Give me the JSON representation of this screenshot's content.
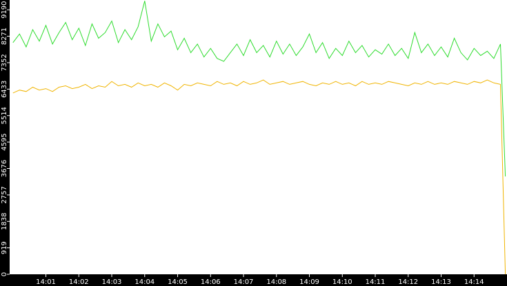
{
  "chart_data": {
    "type": "line",
    "x": [
      840.0,
      840.2,
      840.4,
      840.6,
      840.8,
      841.0,
      841.2,
      841.4,
      841.6,
      841.8,
      842.0,
      842.2,
      842.4,
      842.6,
      842.8,
      843.0,
      843.2,
      843.4,
      843.6,
      843.8,
      844.0,
      844.2,
      844.4,
      844.6,
      844.8,
      845.0,
      845.2,
      845.4,
      845.6,
      845.8,
      846.0,
      846.2,
      846.4,
      846.6,
      846.8,
      847.0,
      847.2,
      847.4,
      847.6,
      847.8,
      848.0,
      848.2,
      848.4,
      848.6,
      848.8,
      849.0,
      849.2,
      849.4,
      849.6,
      849.8,
      850.0,
      850.2,
      850.4,
      850.6,
      850.8,
      851.0,
      851.2,
      851.4,
      851.6,
      851.8,
      852.0,
      852.2,
      852.4,
      852.6,
      852.8,
      853.0,
      853.2,
      853.4,
      853.6,
      853.8,
      854.0,
      854.2,
      854.4,
      854.6,
      854.8,
      854.95
    ],
    "series": [
      {
        "color": "#2edc2e",
        "values": [
          8050,
          8350,
          7900,
          8500,
          8100,
          8650,
          8000,
          8400,
          8750,
          8150,
          8550,
          7950,
          8700,
          8200,
          8400,
          8800,
          8050,
          8500,
          8150,
          8600,
          9500,
          8100,
          8700,
          8250,
          8450,
          7800,
          8200,
          7700,
          8000,
          7550,
          7850,
          7500,
          7400,
          7700,
          8000,
          7600,
          8150,
          7700,
          7950,
          7550,
          8100,
          7650,
          8000,
          7600,
          7900,
          8350,
          7700,
          8050,
          7500,
          7850,
          7600,
          8100,
          7700,
          7950,
          7550,
          7800,
          7650,
          8000,
          7600,
          7850,
          7500,
          8400,
          7700,
          8000,
          7600,
          7900,
          7550,
          8200,
          7700,
          7450,
          7850,
          7600,
          7750,
          7500,
          8000,
          3400
        ]
      },
      {
        "color": "#f0b400",
        "values": [
          6300,
          6400,
          6350,
          6500,
          6400,
          6450,
          6350,
          6500,
          6550,
          6450,
          6500,
          6600,
          6450,
          6550,
          6500,
          6700,
          6550,
          6600,
          6500,
          6650,
          6550,
          6600,
          6500,
          6650,
          6550,
          6400,
          6600,
          6550,
          6650,
          6600,
          6550,
          6700,
          6600,
          6650,
          6550,
          6700,
          6600,
          6650,
          6750,
          6600,
          6650,
          6700,
          6600,
          6650,
          6700,
          6600,
          6550,
          6650,
          6600,
          6700,
          6600,
          6650,
          6550,
          6700,
          6600,
          6650,
          6600,
          6700,
          6650,
          6600,
          6550,
          6650,
          6600,
          6700,
          6600,
          6650,
          6600,
          6700,
          6650,
          6600,
          6700,
          6650,
          6750,
          6650,
          6600,
          0
        ]
      }
    ],
    "xlim": [
      839.9,
      855
    ],
    "xticks": [
      {
        "value": 841,
        "label": "14:01"
      },
      {
        "value": 842,
        "label": "14:02"
      },
      {
        "value": 843,
        "label": "14:03"
      },
      {
        "value": 844,
        "label": "14:04"
      },
      {
        "value": 845,
        "label": "14:05"
      },
      {
        "value": 846,
        "label": "14:06"
      },
      {
        "value": 847,
        "label": "14:07"
      },
      {
        "value": 848,
        "label": "14:08"
      },
      {
        "value": 849,
        "label": "14:09"
      },
      {
        "value": 850,
        "label": "14:10"
      },
      {
        "value": 851,
        "label": "14:11"
      },
      {
        "value": 852,
        "label": "14:12"
      },
      {
        "value": 853,
        "label": "14:13"
      },
      {
        "value": 854,
        "label": "14:14"
      }
    ],
    "ylim": [
      0,
      9530
    ],
    "yticks": [
      0,
      919,
      1838,
      2757,
      3676,
      4595,
      5514,
      6433,
      7352,
      8271,
      9190
    ]
  }
}
